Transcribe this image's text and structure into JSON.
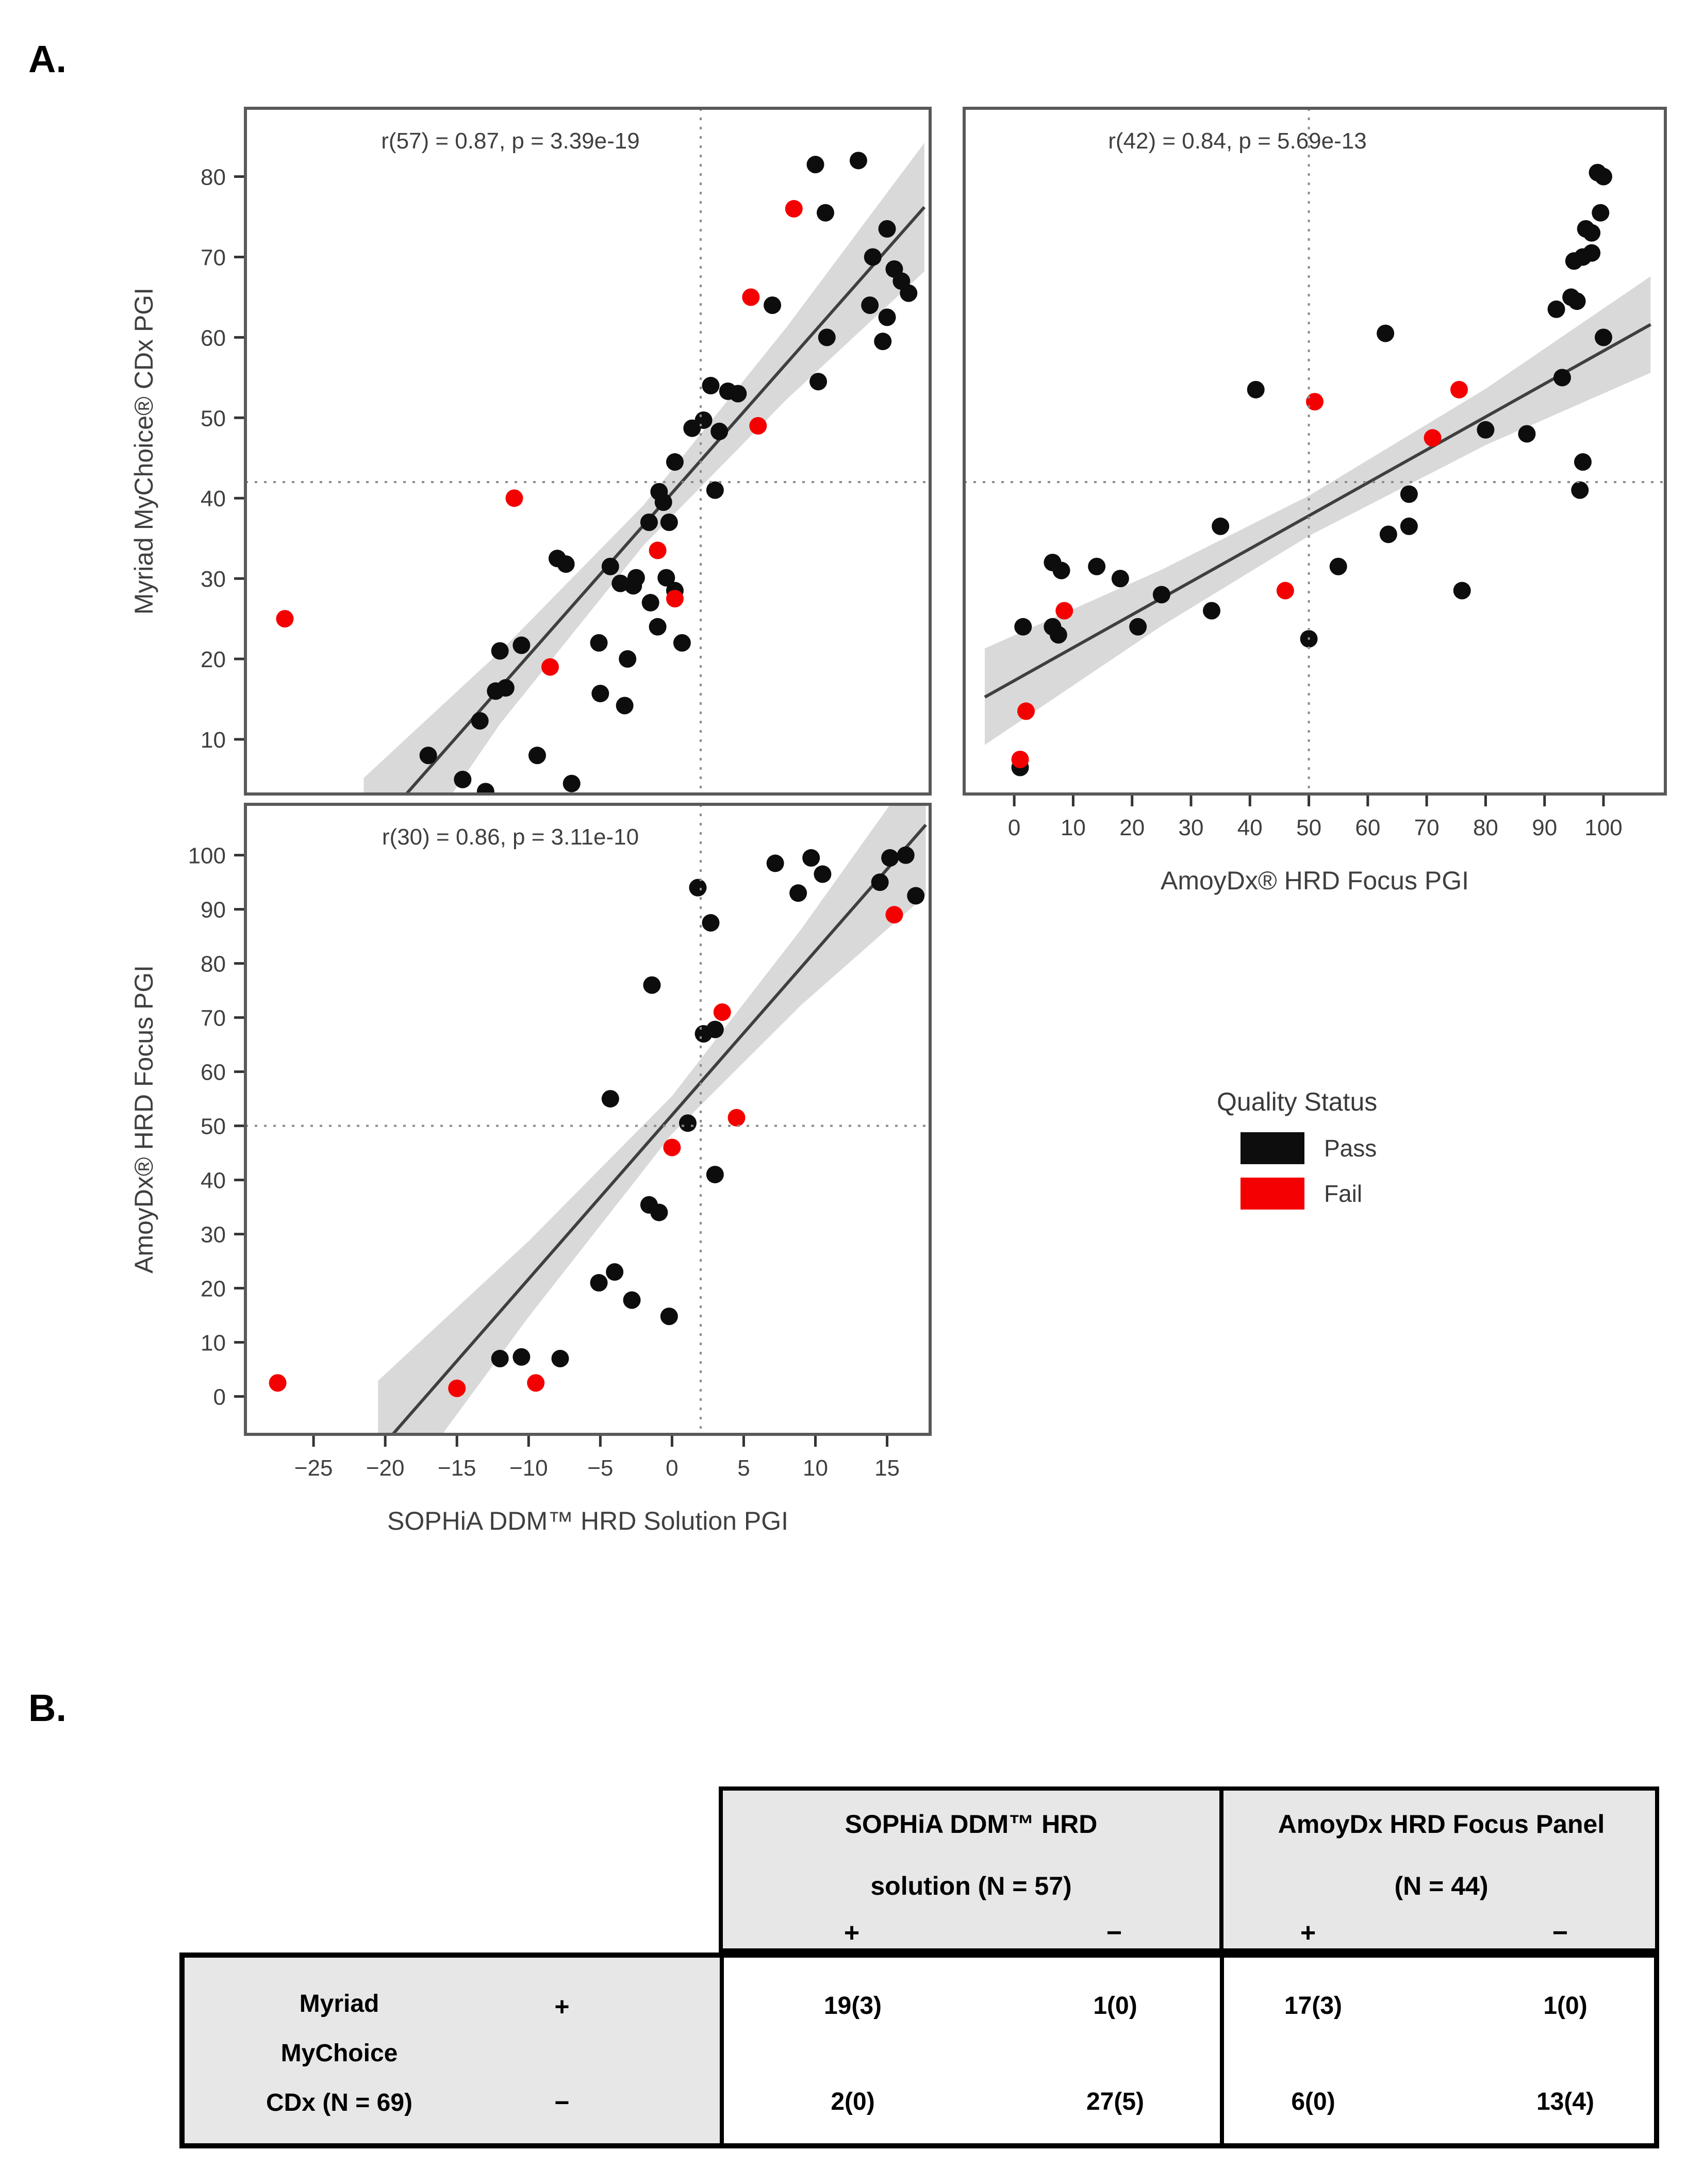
{
  "panels": {
    "a": "A.",
    "b": "B."
  },
  "colors": {
    "pass": "#0d0d0d",
    "fail": "#f50000",
    "band": "#d9d9d9",
    "line": "#3f3f3f",
    "frame": "#595959",
    "text": "#3f3f3f",
    "tick": "#333333",
    "dotted": "#8c8c8c"
  },
  "legend": {
    "title": "Quality Status",
    "items": [
      {
        "label": "Pass",
        "key": "pass"
      },
      {
        "label": "Fail",
        "key": "fail"
      }
    ]
  },
  "chart_data": [
    {
      "id": "sophia_vs_myriad",
      "type": "scatter",
      "stats": "r(57) = 0.87, p = 3.39e-19",
      "xlabel": "",
      "ylabel": "Myriad MyChoice® CDx PGI",
      "xlim": [
        -29.75,
        18.0
      ],
      "ylim": [
        3.2,
        88.5
      ],
      "xticks": [],
      "yticks": [
        10,
        20,
        30,
        40,
        50,
        60,
        70,
        80
      ],
      "threshold": {
        "x": 2,
        "y": 42
      },
      "regression": [
        [
          -21.5,
          -2.8
        ],
        [
          17.6,
          76.2
        ]
      ],
      "band": {
        "upper": [
          [
            -21.5,
            5.2
          ],
          [
            -12,
            20.9
          ],
          [
            -2,
            39.1
          ],
          [
            8,
            61.3
          ],
          [
            17.6,
            84.2
          ]
        ],
        "lower": [
          [
            -21.5,
            -12.8
          ],
          [
            -12,
            11.9
          ],
          [
            -2,
            34.1
          ],
          [
            8,
            52.3
          ],
          [
            17.6,
            68.2
          ]
        ]
      },
      "series": [
        {
          "name": "Pass",
          "points": [
            [
              10,
              81.5
            ],
            [
              13,
              82
            ],
            [
              10.7,
              75.5
            ],
            [
              15,
              73.5
            ],
            [
              14,
              70
            ],
            [
              15.5,
              68.5
            ],
            [
              16,
              67
            ],
            [
              16.5,
              65.5
            ],
            [
              13.8,
              64
            ],
            [
              15,
              62.5
            ],
            [
              10.8,
              60
            ],
            [
              14.7,
              59.5
            ],
            [
              7,
              64
            ],
            [
              10.2,
              54.5
            ],
            [
              2.7,
              54
            ],
            [
              3.9,
              53.3
            ],
            [
              4.6,
              53
            ],
            [
              1.4,
              48.7
            ],
            [
              2.2,
              49.7
            ],
            [
              3.3,
              48.3
            ],
            [
              0.2,
              44.5
            ],
            [
              3,
              41
            ],
            [
              -0.9,
              40.8
            ],
            [
              -0.6,
              39.5
            ],
            [
              -1.6,
              37
            ],
            [
              -0.2,
              37
            ],
            [
              -8,
              32.5
            ],
            [
              -7.4,
              31.8
            ],
            [
              -4.3,
              31.5
            ],
            [
              -3.6,
              29.4
            ],
            [
              -2.7,
              29.1
            ],
            [
              -2.5,
              30.1
            ],
            [
              -0.4,
              30.1
            ],
            [
              0.2,
              28.5
            ],
            [
              -1.5,
              27
            ],
            [
              -1,
              24
            ],
            [
              0.7,
              22
            ],
            [
              -5.1,
              22
            ],
            [
              -3.1,
              20
            ],
            [
              -12,
              21
            ],
            [
              -10.5,
              21.7
            ],
            [
              -12.3,
              16
            ],
            [
              -11.6,
              16.4
            ],
            [
              -5,
              15.7
            ],
            [
              -3.3,
              14.2
            ],
            [
              -13.4,
              12.3
            ],
            [
              -17,
              8
            ],
            [
              -9.4,
              8
            ],
            [
              -7,
              4.5
            ],
            [
              -14.6,
              5
            ],
            [
              -13,
              3.5
            ]
          ]
        },
        {
          "name": "Fail",
          "points": [
            [
              8.5,
              76
            ],
            [
              5.5,
              65
            ],
            [
              6,
              49
            ],
            [
              -11,
              40
            ],
            [
              -1,
              33.5
            ],
            [
              0.2,
              27.5
            ],
            [
              -27,
              25
            ],
            [
              -8.5,
              19
            ]
          ]
        }
      ]
    },
    {
      "id": "amoy_vs_myriad",
      "type": "scatter",
      "stats": "r(42) = 0.84, p = 5.69e-13",
      "xlabel": "AmoyDx® HRD Focus PGI",
      "ylabel": "",
      "xlim": [
        -8.5,
        110.5
      ],
      "ylim": [
        3.2,
        88.5
      ],
      "xticks": [
        0,
        10,
        20,
        30,
        40,
        50,
        60,
        70,
        80,
        90,
        100
      ],
      "yticks": [],
      "threshold": {
        "x": 50,
        "y": 42
      },
      "regression": [
        [
          -5,
          15.25
        ],
        [
          108,
          61.6
        ]
      ],
      "band": {
        "upper": [
          [
            -5,
            21.3
          ],
          [
            25,
            31.1
          ],
          [
            50,
            40.3
          ],
          [
            80,
            53.6
          ],
          [
            108,
            67.6
          ]
        ],
        "lower": [
          [
            -5,
            9.3
          ],
          [
            25,
            24.1
          ],
          [
            50,
            35.3
          ],
          [
            80,
            46.6
          ],
          [
            108,
            55.6
          ]
        ]
      },
      "series": [
        {
          "name": "Pass",
          "points": [
            [
              1,
              6.5
            ],
            [
              1.5,
              24
            ],
            [
              6.5,
              24
            ],
            [
              7.5,
              23
            ],
            [
              6.5,
              32
            ],
            [
              8,
              31
            ],
            [
              14,
              31.5
            ],
            [
              18,
              30
            ],
            [
              21,
              24
            ],
            [
              25,
              28
            ],
            [
              33.5,
              26
            ],
            [
              35,
              36.5
            ],
            [
              41,
              53.5
            ],
            [
              50,
              22.5
            ],
            [
              55,
              31.5
            ],
            [
              63,
              60.5
            ],
            [
              63.5,
              35.5
            ],
            [
              67,
              40.5
            ],
            [
              67,
              36.5
            ],
            [
              76,
              28.5
            ],
            [
              80,
              48.5
            ],
            [
              87,
              48
            ],
            [
              92,
              63.5
            ],
            [
              93,
              55
            ],
            [
              94.5,
              65
            ],
            [
              95.5,
              64.5
            ],
            [
              95,
              69.5
            ],
            [
              96.5,
              70
            ],
            [
              96,
              41
            ],
            [
              96.5,
              44.5
            ],
            [
              97,
              73.5
            ],
            [
              98,
              73
            ],
            [
              98,
              70.5
            ],
            [
              99,
              80.5
            ],
            [
              100,
              80
            ],
            [
              99.5,
              75.5
            ],
            [
              100,
              60
            ]
          ]
        },
        {
          "name": "Fail",
          "points": [
            [
              1,
              7.5
            ],
            [
              2,
              13.5
            ],
            [
              8.5,
              26
            ],
            [
              46,
              28.5
            ],
            [
              51,
              52
            ],
            [
              71,
              47.5
            ],
            [
              75.5,
              53.5
            ]
          ]
        }
      ]
    },
    {
      "id": "sophia_vs_amoy",
      "type": "scatter",
      "stats": "r(30) = 0.86, p = 3.11e-10",
      "xlabel": "SOPHiA DDM™ HRD Solution PGI",
      "ylabel": "AmoyDx® HRD Focus PGI",
      "xlim": [
        -29.75,
        18.0
      ],
      "ylim": [
        -7.0,
        109.4
      ],
      "xticks": [
        -25,
        -20,
        -15,
        -10,
        -5,
        0,
        5,
        10,
        15
      ],
      "yticks": [
        0,
        10,
        20,
        30,
        40,
        50,
        60,
        70,
        80,
        90,
        100
      ],
      "threshold": {
        "x": 2,
        "y": 50
      },
      "regression": [
        [
          -20.5,
          -10.1
        ],
        [
          17.7,
          105.6
        ]
      ],
      "band": {
        "upper": [
          [
            -20.5,
            2.9
          ],
          [
            -10,
            28.7
          ],
          [
            0,
            55.5
          ],
          [
            9,
            86.3
          ],
          [
            17.7,
            118.6
          ]
        ],
        "lower": [
          [
            -20.5,
            -23.1
          ],
          [
            -10,
            14.7
          ],
          [
            0,
            48.5
          ],
          [
            9,
            72.3
          ],
          [
            17.7,
            92.6
          ]
        ]
      },
      "series": [
        {
          "name": "Pass",
          "points": [
            [
              -12,
              7
            ],
            [
              -10.5,
              7.3
            ],
            [
              -7.8,
              7
            ],
            [
              -5.1,
              21
            ],
            [
              -4,
              23
            ],
            [
              -2.8,
              17.8
            ],
            [
              -0.2,
              14.8
            ],
            [
              -1.6,
              35.4
            ],
            [
              -0.9,
              34
            ],
            [
              -4.3,
              55
            ],
            [
              1.1,
              50.5
            ],
            [
              3,
              41
            ],
            [
              2.2,
              67
            ],
            [
              3,
              67.8
            ],
            [
              -1.4,
              76
            ],
            [
              2.7,
              87.5
            ],
            [
              1.8,
              94
            ],
            [
              7.2,
              98.5
            ],
            [
              8.8,
              93
            ],
            [
              9.7,
              99.5
            ],
            [
              10.5,
              96.5
            ],
            [
              14.5,
              95
            ],
            [
              15.2,
              99.5
            ],
            [
              16.3,
              100
            ],
            [
              17,
              92.5
            ]
          ]
        },
        {
          "name": "Fail",
          "points": [
            [
              -27.5,
              2.5
            ],
            [
              -15,
              1.5
            ],
            [
              -9.5,
              2.5
            ],
            [
              0,
              46
            ],
            [
              4.5,
              51.5
            ],
            [
              3.5,
              71
            ],
            [
              15.5,
              89
            ]
          ]
        }
      ]
    }
  ],
  "panelB": {
    "table": {
      "header": {
        "groups": [
          {
            "line1": "SOPHiA DDM™ HRD",
            "line2": "solution (N = 57)"
          },
          {
            "line1": "AmoyDx HRD Focus Panel",
            "line2": "(N = 44)"
          }
        ],
        "signs": [
          "+",
          "−",
          "+",
          "−"
        ]
      },
      "row_label_lines": [
        "Myriad",
        "MyChoice",
        "CDx (N = 69)"
      ],
      "body": {
        "rows": [
          {
            "sign": "+",
            "values": [
              "19(3)",
              "1(0)",
              "17(3)",
              "1(0)"
            ]
          },
          {
            "sign": "−",
            "values": [
              "2(0)",
              "27(5)",
              "6(0)",
              "13(4)"
            ]
          }
        ]
      }
    }
  }
}
